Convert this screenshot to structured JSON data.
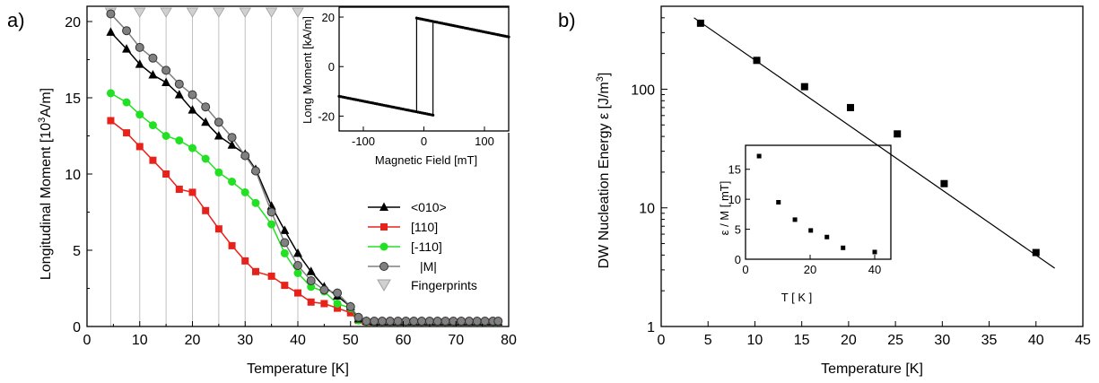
{
  "chart_data": [
    {
      "panel": "a)",
      "type": "line",
      "xlabel": "Temperature [K]",
      "ylabel": "Longitudinal Moment [10³A/m]",
      "ylabel_main": "Longitudinal Moment [10",
      "ylabel_sup": "3",
      "ylabel_end": "A/m]",
      "xlim": [
        0,
        80
      ],
      "ylim": [
        0,
        21
      ],
      "xticks": [
        0,
        10,
        20,
        30,
        40,
        50,
        60,
        70,
        80
      ],
      "yticks": [
        0,
        5,
        10,
        15,
        20
      ],
      "grid": false,
      "legend_position": "center-right",
      "fingerprints_name": "Fingerprints",
      "fingerprints_color": "#c0c0c0",
      "fingerprints_x": [
        4.5,
        10,
        15,
        20,
        25,
        30,
        35,
        40
      ],
      "series": [
        {
          "name": "<010>",
          "color": "#000000",
          "marker": "triangle",
          "x": [
            4.5,
            7.5,
            10,
            12.5,
            15,
            17.5,
            20,
            22.5,
            25,
            27.5,
            30,
            32,
            35,
            37.5,
            40,
            42.5,
            45,
            47.5,
            50,
            51.5,
            53,
            54.5,
            56,
            57.5,
            59,
            60.5,
            62,
            63.5,
            65,
            66.5,
            68,
            69.5,
            71,
            72.5,
            74,
            75.5,
            77,
            78
          ],
          "y": [
            19.3,
            18.2,
            17.2,
            16.5,
            16.0,
            15.2,
            14.2,
            13.4,
            12.5,
            11.9,
            11.3,
            10.3,
            7.9,
            6.3,
            4.8,
            3.6,
            2.6,
            2.0,
            1.3,
            0.5,
            0.35,
            0.3,
            0.3,
            0.3,
            0.3,
            0.3,
            0.3,
            0.3,
            0.3,
            0.3,
            0.3,
            0.3,
            0.3,
            0.3,
            0.3,
            0.3,
            0.3,
            0.3
          ]
        },
        {
          "name": "[110]",
          "color": "#e8221b",
          "marker": "square",
          "x": [
            4.5,
            7.5,
            10,
            12.5,
            15,
            17.5,
            20,
            22.5,
            25,
            27.5,
            30,
            32,
            35,
            37.5,
            40,
            42.5,
            45,
            47.5,
            50,
            51.5,
            53,
            54.5,
            56,
            57.5,
            59,
            60.5,
            62,
            63.5,
            65,
            66.5,
            68,
            69.5,
            71,
            72.5,
            74,
            75.5,
            77,
            78
          ],
          "y": [
            13.5,
            12.7,
            11.8,
            10.9,
            10.0,
            9.0,
            8.8,
            7.6,
            6.4,
            5.3,
            4.3,
            3.6,
            3.3,
            2.7,
            2.2,
            1.6,
            1.5,
            1.2,
            0.9,
            0.4,
            0.3,
            0.3,
            0.3,
            0.3,
            0.3,
            0.3,
            0.3,
            0.3,
            0.3,
            0.3,
            0.3,
            0.3,
            0.3,
            0.3,
            0.3,
            0.3,
            0.3,
            0.3
          ]
        },
        {
          "name": "[-110]",
          "color": "#22e022",
          "marker": "circle",
          "x": [
            4.5,
            7.5,
            10,
            12.5,
            15,
            17.5,
            20,
            22.5,
            25,
            27.5,
            30,
            32,
            35,
            37.5,
            40,
            42.5,
            45,
            47.5,
            50,
            51.5,
            53,
            54.5,
            56,
            57.5,
            59,
            60.5,
            62,
            63.5,
            65,
            66.5,
            68,
            69.5,
            71,
            72.5,
            74,
            75.5,
            77,
            78
          ],
          "y": [
            15.3,
            14.7,
            13.9,
            13.2,
            12.5,
            12.2,
            11.7,
            11.0,
            10.1,
            9.5,
            8.8,
            8.1,
            6.7,
            4.8,
            3.5,
            2.6,
            2.3,
            1.5,
            1.2,
            0.4,
            0.3,
            0.3,
            0.3,
            0.3,
            0.3,
            0.3,
            0.3,
            0.3,
            0.3,
            0.3,
            0.3,
            0.3,
            0.3,
            0.3,
            0.3,
            0.3,
            0.3,
            0.3
          ]
        },
        {
          "name": "|M|",
          "color": "#808080",
          "marker": "circle",
          "x": [
            4.5,
            7.5,
            10,
            12.5,
            15,
            17.5,
            20,
            22.5,
            25,
            27.5,
            30,
            32,
            35,
            37.5,
            40,
            42.5,
            45,
            47.5,
            50,
            51.5,
            53,
            54.5,
            56,
            57.5,
            59,
            60.5,
            62,
            63.5,
            65,
            66.5,
            68,
            69.5,
            71,
            72.5,
            74,
            75.5,
            77,
            78
          ],
          "y": [
            20.5,
            19.4,
            18.3,
            17.6,
            16.8,
            15.9,
            15.2,
            14.4,
            13.4,
            12.4,
            11.2,
            10.2,
            7.5,
            5.5,
            4.0,
            3.0,
            2.4,
            2.2,
            1.3,
            0.6,
            0.35,
            0.35,
            0.35,
            0.35,
            0.35,
            0.35,
            0.35,
            0.35,
            0.35,
            0.35,
            0.35,
            0.35,
            0.35,
            0.35,
            0.35,
            0.35,
            0.35,
            0.35
          ]
        }
      ],
      "inset": {
        "type": "line",
        "xlabel": "Magnetic Field [mT]",
        "ylabel": "Long Moment [kA/m]",
        "xlim": [
          -140,
          140
        ],
        "ylim": [
          -26,
          24
        ],
        "xticks": [
          -100,
          0,
          100
        ],
        "yticks": [
          -20,
          0,
          20
        ],
        "color": "#000000",
        "upper_branch": {
          "x": [
            -12,
            140
          ],
          "y": [
            19.6,
            12.0
          ]
        },
        "lower_branch": {
          "x": [
            -140,
            15
          ],
          "y": [
            -12.0,
            -19.6
          ]
        },
        "switch_up_x": -12,
        "switch_down_x": 15
      }
    },
    {
      "panel": "b)",
      "type": "scatter",
      "xlabel": "Temperature [K]",
      "ylabel": "DW Nucleation Energy ε [J/m³]",
      "ylabel_main": "DW Nucleation Energy  ε [J/m",
      "ylabel_sup": "3",
      "ylabel_end": "]",
      "yscale": "log",
      "xlim": [
        0,
        45
      ],
      "ylim": [
        1,
        500
      ],
      "xticks": [
        0,
        5,
        10,
        15,
        20,
        25,
        30,
        35,
        40,
        45
      ],
      "yticks": [
        1,
        10,
        100
      ],
      "grid": false,
      "color": "#000000",
      "points": {
        "x": [
          4.2,
          10.2,
          15.3,
          20.2,
          25.2,
          30.2,
          40.0
        ],
        "y": [
          360,
          175,
          105,
          70,
          42,
          16,
          4.2
        ]
      },
      "fit_line": {
        "x": [
          3.5,
          42
        ],
        "y": [
          400,
          3.1
        ]
      },
      "inset": {
        "type": "scatter",
        "xlabel": "T [ K ]",
        "ylabel": "ε / M [ mT]",
        "xlim": [
          0,
          45
        ],
        "ylim": [
          0,
          19
        ],
        "xticks": [
          0,
          20,
          40
        ],
        "yticks": [
          0,
          5,
          10,
          15
        ],
        "color": "#000000",
        "points": {
          "x": [
            4.2,
            10.2,
            15.3,
            20.2,
            25.2,
            30.2,
            40.0
          ],
          "y": [
            17.2,
            9.5,
            6.6,
            4.8,
            3.7,
            1.9,
            1.2
          ]
        }
      }
    }
  ]
}
